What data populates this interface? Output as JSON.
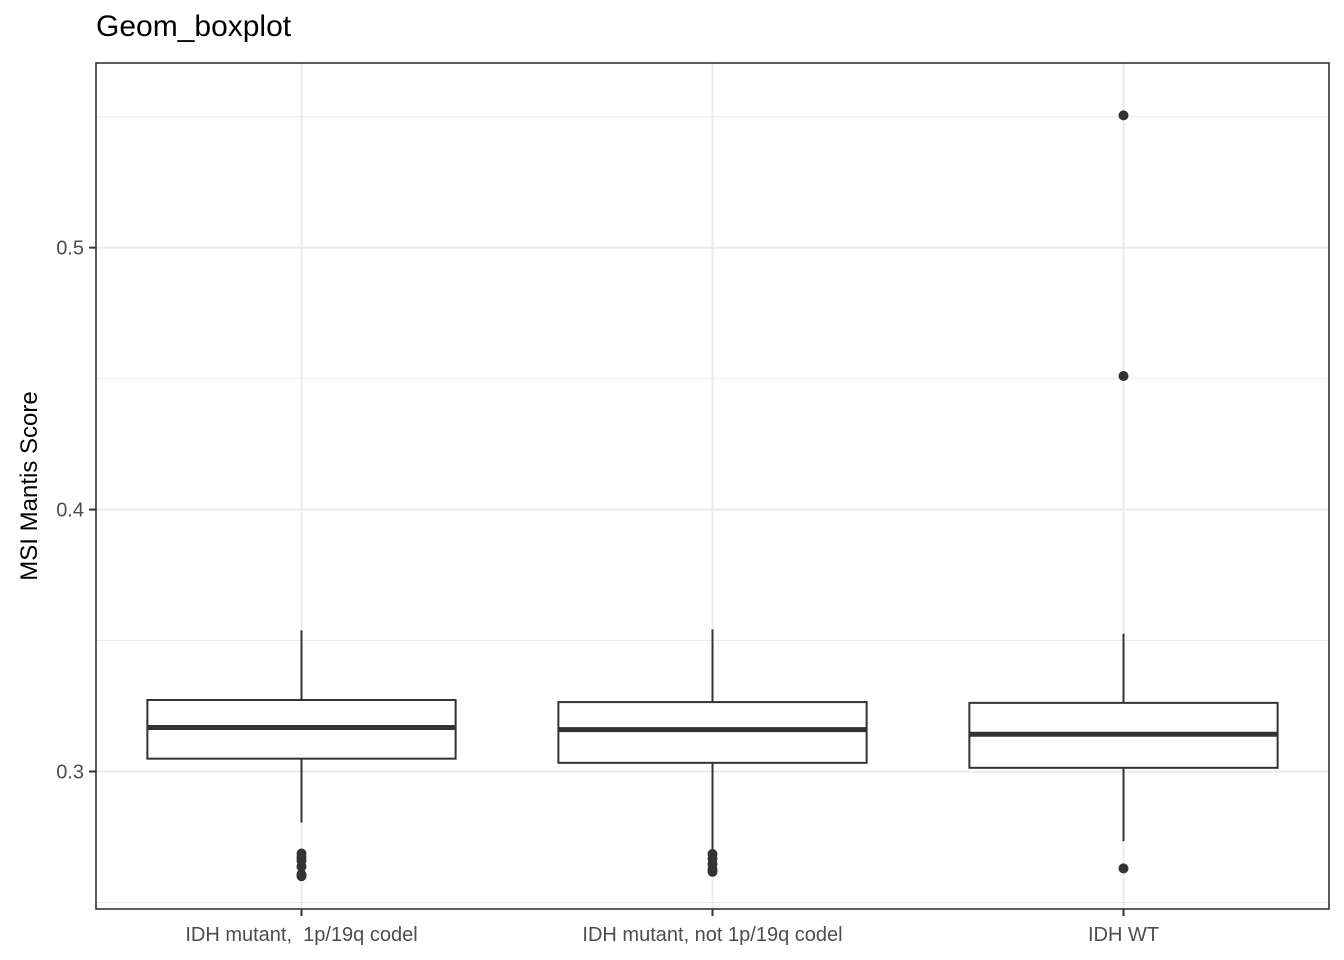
{
  "chart_data": {
    "type": "boxplot",
    "title": "Geom_boxplot",
    "xlabel": "",
    "ylabel": "MSI Mantis Score",
    "ylim": [
      0.2475,
      0.5705
    ],
    "yticks": [
      0.3,
      0.4,
      0.5
    ],
    "ytick_labels": [
      "0.3",
      "0.4",
      "0.5"
    ],
    "grid": true,
    "colors": {
      "box_fill": "#ffffff",
      "box_stroke": "#333333",
      "grid": "#ebebeb",
      "outlier": "#333333"
    },
    "categories": [
      "IDH mutant,  1p/19q codel",
      "IDH mutant, not 1p/19q codel",
      "IDH WT"
    ],
    "boxes": [
      {
        "whisker_low": 0.2805,
        "q1": 0.3049,
        "median": 0.3168,
        "q3": 0.3273,
        "whisker_high": 0.3539,
        "outliers": [
          0.2687,
          0.2673,
          0.266,
          0.2637,
          0.2607,
          0.26
        ]
      },
      {
        "whisker_low": 0.2688,
        "q1": 0.3033,
        "median": 0.316,
        "q3": 0.3265,
        "whisker_high": 0.3543,
        "outliers": [
          0.2685,
          0.2667,
          0.2647,
          0.2627,
          0.2617
        ]
      },
      {
        "whisker_low": 0.2734,
        "q1": 0.3014,
        "median": 0.3142,
        "q3": 0.3262,
        "whisker_high": 0.3526,
        "outliers": [
          0.5505,
          0.451,
          0.263
        ]
      }
    ]
  }
}
